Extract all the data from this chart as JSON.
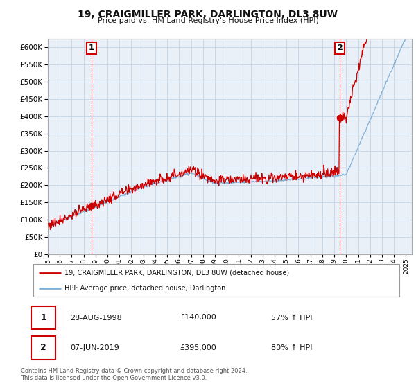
{
  "title": "19, CRAIGMILLER PARK, DARLINGTON, DL3 8UW",
  "subtitle": "Price paid vs. HM Land Registry's House Price Index (HPI)",
  "ylabel_ticks": [
    0,
    50000,
    100000,
    150000,
    200000,
    250000,
    300000,
    350000,
    400000,
    450000,
    500000,
    550000,
    600000
  ],
  "ylim": [
    0,
    625000
  ],
  "xlim_start": 1995.0,
  "xlim_end": 2025.5,
  "transaction1": {
    "year": 1998.65,
    "price": 140000,
    "label": "1",
    "date": "28-AUG-1998",
    "pct": "57% ↑ HPI"
  },
  "transaction2": {
    "year": 2019.43,
    "price": 395000,
    "label": "2",
    "date": "07-JUN-2019",
    "pct": "80% ↑ HPI"
  },
  "red_color": "#cc0000",
  "blue_color": "#7fb0d8",
  "legend_label_red": "19, CRAIGMILLER PARK, DARLINGTON, DL3 8UW (detached house)",
  "legend_label_blue": "HPI: Average price, detached house, Darlington",
  "footnote": "Contains HM Land Registry data © Crown copyright and database right 2024.\nThis data is licensed under the Open Government Licence v3.0.",
  "background_color": "#ffffff",
  "grid_color": "#c8d8e8",
  "chart_bg": "#eaf0f8"
}
